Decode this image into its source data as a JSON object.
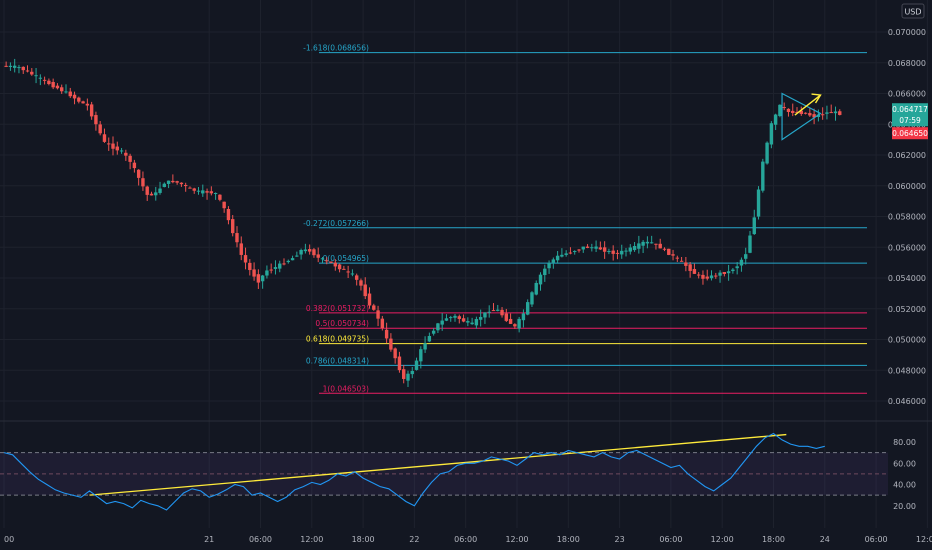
{
  "currency": "USD",
  "price_axis": {
    "ticks": [
      "0.070000",
      "0.068000",
      "0.066000",
      "0.064000",
      "0.062000",
      "0.060000",
      "0.058000",
      "0.056000",
      "0.054000",
      "0.052000",
      "0.050000",
      "0.048000",
      "0.046000"
    ],
    "tick_values": [
      0.07,
      0.068,
      0.066,
      0.064,
      0.062,
      0.06,
      0.058,
      0.056,
      0.054,
      0.052,
      0.05,
      0.048,
      0.046
    ]
  },
  "price_tags": [
    {
      "text": "0.064717",
      "value": 0.064717,
      "color": "#26a69a"
    },
    {
      "text": "07:59",
      "value": null,
      "color": "#26a69a"
    },
    {
      "text": "0.064650",
      "value": 0.06465,
      "color": "#f23645"
    }
  ],
  "rsi_axis": {
    "ticks": [
      "80.00",
      "60.00",
      "40.00",
      "20.00"
    ],
    "tick_values": [
      80,
      60,
      40,
      20
    ],
    "band_upper": 70,
    "band_mid": 50,
    "band_lower": 30
  },
  "time_axis": {
    "labels": [
      "00",
      "21",
      "06:00",
      "12:00",
      "18:00",
      "22",
      "06:00",
      "12:00",
      "18:00",
      "23",
      "06:00",
      "12:00",
      "18:00",
      "24",
      "06:00",
      "12:00"
    ],
    "positions_hours": [
      0,
      24,
      30,
      36,
      42,
      48,
      54,
      60,
      66,
      72,
      78,
      84,
      90,
      96,
      102,
      108
    ]
  },
  "fib_levels": [
    {
      "label": "-1.618(0.068656)",
      "value": 0.068656,
      "color": "#26a6c9"
    },
    {
      "label": "-0.272(0.057266)",
      "value": 0.057266,
      "color": "#26a6c9"
    },
    {
      "label": "0(0.054965)",
      "value": 0.054965,
      "color": "#26a6c9"
    },
    {
      "label": "0.382(0.051732)",
      "value": 0.051732,
      "color": "#e91e63"
    },
    {
      "label": "0.5(0.050734)",
      "value": 0.050734,
      "color": "#e91e63"
    },
    {
      "label": "0.618(0.049735)",
      "value": 0.049735,
      "color": "#ffeb3b"
    },
    {
      "label": "0.786(0.048314)",
      "value": 0.048314,
      "color": "#26a6c9"
    },
    {
      "label": "1(0.046503)",
      "value": 0.046503,
      "color": "#e91e63"
    }
  ],
  "chart_data": [
    {
      "type": "candlestick",
      "x_unit": "hours from left edge",
      "ylim": [
        0.0452,
        0.0712
      ],
      "colors": {
        "up": "#26a69a",
        "down": "#ef5350"
      },
      "path_points": [
        [
          0,
          0.0678
        ],
        [
          2,
          0.0677
        ],
        [
          4,
          0.0671
        ],
        [
          6,
          0.0665
        ],
        [
          8,
          0.0659
        ],
        [
          9,
          0.0655
        ],
        [
          10,
          0.0652
        ],
        [
          11,
          0.064
        ],
        [
          12,
          0.0628
        ],
        [
          13,
          0.0625
        ],
        [
          14,
          0.0622
        ],
        [
          15,
          0.0616
        ],
        [
          16,
          0.0605
        ],
        [
          17,
          0.0594
        ],
        [
          18,
          0.0595
        ],
        [
          19,
          0.0602
        ],
        [
          20,
          0.0603
        ],
        [
          21,
          0.0601
        ],
        [
          22,
          0.0598
        ],
        [
          23,
          0.0596
        ],
        [
          24,
          0.0596
        ],
        [
          25,
          0.0595
        ],
        [
          26,
          0.0585
        ],
        [
          27,
          0.057
        ],
        [
          28,
          0.0555
        ],
        [
          29,
          0.0545
        ],
        [
          30,
          0.0538
        ],
        [
          31,
          0.0545
        ],
        [
          32,
          0.0547
        ],
        [
          33,
          0.055
        ],
        [
          34,
          0.0553
        ],
        [
          35,
          0.0558
        ],
        [
          36,
          0.0558
        ],
        [
          37,
          0.0553
        ],
        [
          38,
          0.0551
        ],
        [
          39,
          0.0548
        ],
        [
          40,
          0.0545
        ],
        [
          41,
          0.0542
        ],
        [
          42,
          0.0535
        ],
        [
          43,
          0.0523
        ],
        [
          44,
          0.0514
        ],
        [
          45,
          0.05
        ],
        [
          46,
          0.0488
        ],
        [
          47,
          0.0474
        ],
        [
          48,
          0.048
        ],
        [
          49,
          0.0493
        ],
        [
          50,
          0.0503
        ],
        [
          51,
          0.051
        ],
        [
          52,
          0.0514
        ],
        [
          53,
          0.0515
        ],
        [
          54,
          0.0512
        ],
        [
          55,
          0.051
        ],
        [
          56,
          0.0515
        ],
        [
          57,
          0.0519
        ],
        [
          58,
          0.0519
        ],
        [
          59,
          0.0513
        ],
        [
          60,
          0.0508
        ],
        [
          61,
          0.0517
        ],
        [
          62,
          0.053
        ],
        [
          63,
          0.0542
        ],
        [
          64,
          0.055
        ],
        [
          65,
          0.0554
        ],
        [
          66,
          0.0556
        ],
        [
          67,
          0.0558
        ],
        [
          68,
          0.056
        ],
        [
          69,
          0.056
        ],
        [
          70,
          0.0559
        ],
        [
          71,
          0.0557
        ],
        [
          72,
          0.0556
        ],
        [
          73,
          0.0558
        ],
        [
          74,
          0.056
        ],
        [
          75,
          0.0563
        ],
        [
          76,
          0.0563
        ],
        [
          77,
          0.056
        ],
        [
          78,
          0.0556
        ],
        [
          79,
          0.0552
        ],
        [
          80,
          0.0548
        ],
        [
          81,
          0.0543
        ],
        [
          82,
          0.054
        ],
        [
          83,
          0.0541
        ],
        [
          84,
          0.0543
        ],
        [
          85,
          0.0544
        ],
        [
          86,
          0.0548
        ],
        [
          87,
          0.0556
        ],
        [
          88,
          0.058
        ],
        [
          89,
          0.0615
        ],
        [
          90,
          0.064
        ],
        [
          91,
          0.0652
        ],
        [
          92,
          0.0648
        ],
        [
          93,
          0.0648
        ],
        [
          94,
          0.0647
        ],
        [
          95,
          0.0645
        ],
        [
          96,
          0.0647
        ],
        [
          97,
          0.0648
        ],
        [
          98,
          0.0647
        ]
      ]
    },
    {
      "type": "line",
      "name": "",
      "ylim": [
        10,
        95
      ],
      "x_unit": "hours from left edge",
      "points": [
        [
          0,
          70
        ],
        [
          1,
          68
        ],
        [
          2,
          60
        ],
        [
          3,
          52
        ],
        [
          4,
          45
        ],
        [
          5,
          40
        ],
        [
          6,
          35
        ],
        [
          7,
          32
        ],
        [
          8,
          30
        ],
        [
          9,
          28
        ],
        [
          10,
          34
        ],
        [
          11,
          28
        ],
        [
          12,
          22
        ],
        [
          13,
          24
        ],
        [
          14,
          22
        ],
        [
          15,
          18
        ],
        [
          16,
          25
        ],
        [
          17,
          22
        ],
        [
          18,
          20
        ],
        [
          19,
          16
        ],
        [
          20,
          24
        ],
        [
          21,
          32
        ],
        [
          22,
          36
        ],
        [
          23,
          34
        ],
        [
          24,
          28
        ],
        [
          25,
          31
        ],
        [
          26,
          35
        ],
        [
          27,
          40
        ],
        [
          28,
          38
        ],
        [
          29,
          30
        ],
        [
          30,
          32
        ],
        [
          31,
          28
        ],
        [
          32,
          24
        ],
        [
          33,
          28
        ],
        [
          34,
          35
        ],
        [
          35,
          38
        ],
        [
          36,
          42
        ],
        [
          37,
          40
        ],
        [
          38,
          44
        ],
        [
          39,
          50
        ],
        [
          40,
          48
        ],
        [
          41,
          52
        ],
        [
          42,
          46
        ],
        [
          43,
          42
        ],
        [
          44,
          38
        ],
        [
          45,
          36
        ],
        [
          46,
          30
        ],
        [
          47,
          24
        ],
        [
          48,
          20
        ],
        [
          49,
          32
        ],
        [
          50,
          42
        ],
        [
          51,
          50
        ],
        [
          52,
          52
        ],
        [
          53,
          58
        ],
        [
          54,
          60
        ],
        [
          55,
          60
        ],
        [
          56,
          62
        ],
        [
          57,
          66
        ],
        [
          58,
          64
        ],
        [
          59,
          62
        ],
        [
          60,
          58
        ],
        [
          61,
          64
        ],
        [
          62,
          70
        ],
        [
          63,
          68
        ],
        [
          64,
          70
        ],
        [
          65,
          68
        ],
        [
          66,
          72
        ],
        [
          67,
          70
        ],
        [
          68,
          68
        ],
        [
          69,
          66
        ],
        [
          70,
          70
        ],
        [
          71,
          66
        ],
        [
          72,
          64
        ],
        [
          73,
          70
        ],
        [
          74,
          72
        ],
        [
          75,
          68
        ],
        [
          76,
          64
        ],
        [
          77,
          60
        ],
        [
          78,
          56
        ],
        [
          79,
          58
        ],
        [
          80,
          50
        ],
        [
          81,
          44
        ],
        [
          82,
          38
        ],
        [
          83,
          34
        ],
        [
          84,
          40
        ],
        [
          85,
          46
        ],
        [
          86,
          56
        ],
        [
          87,
          66
        ],
        [
          88,
          76
        ],
        [
          89,
          84
        ],
        [
          90,
          88
        ],
        [
          91,
          82
        ],
        [
          92,
          78
        ],
        [
          93,
          76
        ],
        [
          94,
          76
        ],
        [
          95,
          74
        ],
        [
          96,
          76
        ]
      ]
    }
  ],
  "drawings": {
    "triangle_color": "#26a6c9",
    "arrow_color": "#ffeb3b",
    "trendline_color": "#ffeb3b"
  }
}
